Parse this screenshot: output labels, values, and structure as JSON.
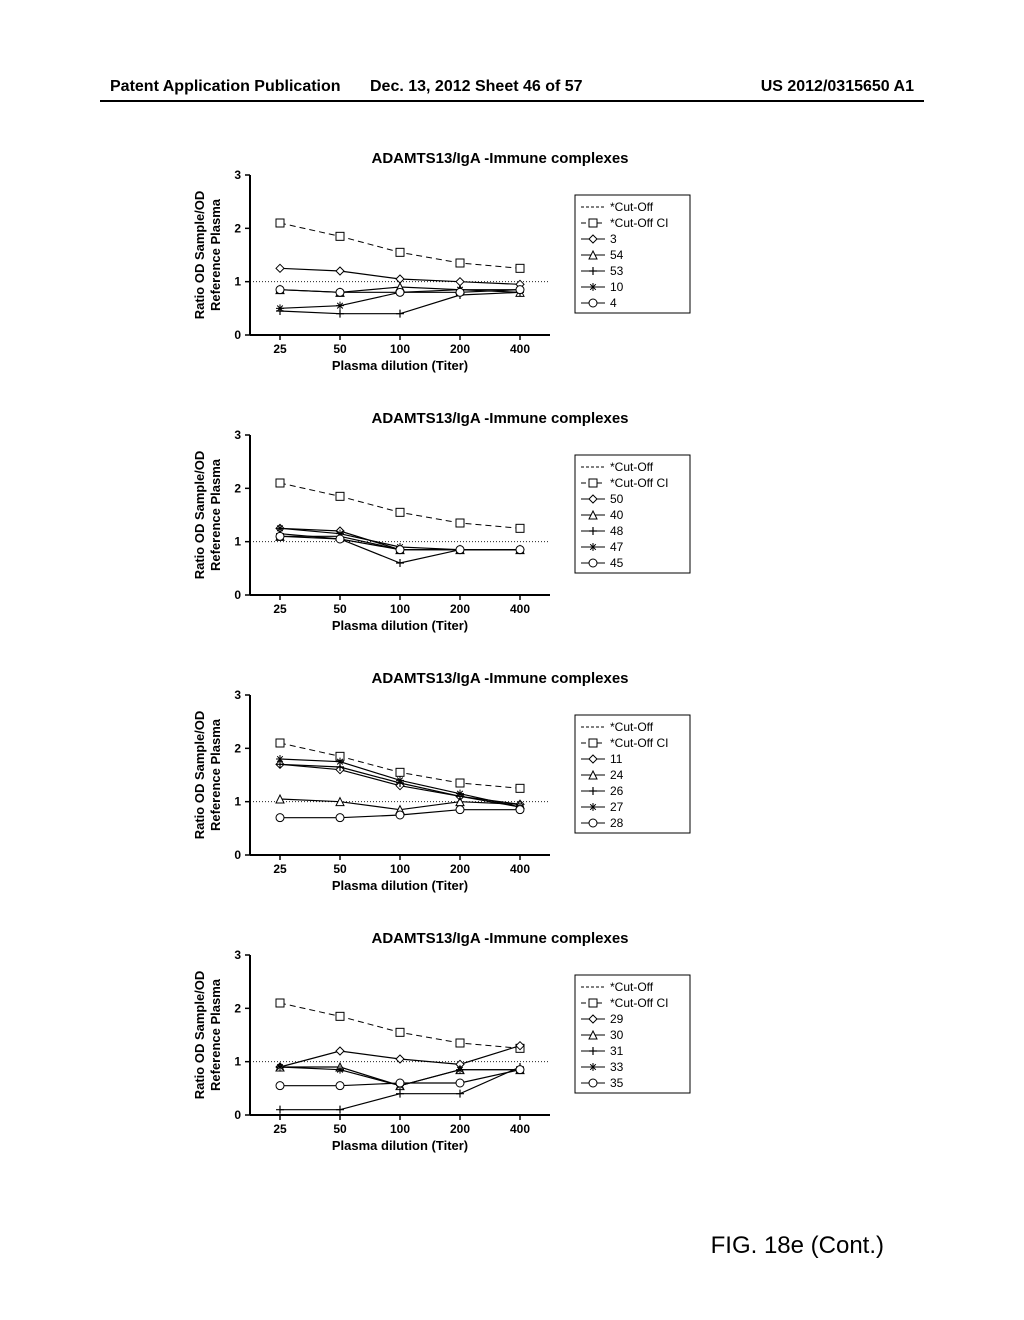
{
  "header": {
    "left": "Patent Application Publication",
    "mid": "Dec. 13, 2012  Sheet 46 of 57",
    "right": "US 2012/0315650 A1"
  },
  "caption": "FIG. 18e (Cont.)",
  "chartCommon": {
    "xlabel": "Plasma dilution (Titer)",
    "ylabel1": "Ratio OD Sample/OD",
    "ylabel2": "Reference Plasma",
    "title": "ADAMTS13/IgA -Immune complexes",
    "xticks": [
      "25",
      "50",
      "100",
      "200",
      "400"
    ],
    "yticks": [
      "0",
      "1",
      "2",
      "3"
    ],
    "cutoffValue": 1.0,
    "cutoffCI": [
      2.1,
      1.85,
      1.55,
      1.35,
      1.25
    ],
    "legendCutoff": "*Cut-Off",
    "legendCutoffCI": "*Cut-Off CI",
    "axisWidthPx": 300,
    "axisHeightPx": 160,
    "titleFontsize": 15,
    "labelFontsize": 13,
    "tickFontsize": 12,
    "legendFontsize": 12,
    "background": "#ffffff",
    "axisColor": "#000000",
    "lineColor": "#000000",
    "lineWidth": 1.2
  },
  "charts": [
    {
      "series": [
        {
          "label": "3",
          "marker": "diamond-open",
          "values": [
            1.25,
            1.2,
            1.05,
            1.0,
            0.95
          ]
        },
        {
          "label": "54",
          "marker": "triangle-open",
          "values": [
            0.85,
            0.8,
            0.9,
            0.85,
            0.8
          ]
        },
        {
          "label": "53",
          "marker": "plus",
          "values": [
            0.45,
            0.4,
            0.4,
            0.75,
            0.8
          ]
        },
        {
          "label": "10",
          "marker": "asterisk",
          "values": [
            0.5,
            0.55,
            0.8,
            0.85,
            0.85
          ]
        },
        {
          "label": "4",
          "marker": "circle-open",
          "values": [
            0.85,
            0.8,
            0.8,
            0.8,
            0.85
          ]
        }
      ]
    },
    {
      "series": [
        {
          "label": "50",
          "marker": "diamond-open",
          "values": [
            1.25,
            1.2,
            0.85,
            0.85,
            0.85
          ]
        },
        {
          "label": "40",
          "marker": "triangle-open",
          "values": [
            1.1,
            1.1,
            0.85,
            0.85,
            0.85
          ]
        },
        {
          "label": "48",
          "marker": "plus",
          "values": [
            1.15,
            1.05,
            0.6,
            0.85,
            0.85
          ]
        },
        {
          "label": "47",
          "marker": "asterisk",
          "values": [
            1.25,
            1.15,
            0.9,
            0.85,
            0.85
          ]
        },
        {
          "label": "45",
          "marker": "circle-open",
          "values": [
            1.1,
            1.05,
            0.85,
            0.85,
            0.85
          ]
        }
      ]
    },
    {
      "series": [
        {
          "label": "11",
          "marker": "diamond-open",
          "values": [
            1.7,
            1.6,
            1.3,
            1.1,
            0.95
          ]
        },
        {
          "label": "24",
          "marker": "triangle-open",
          "values": [
            1.05,
            1.0,
            0.85,
            1.0,
            0.95
          ]
        },
        {
          "label": "26",
          "marker": "plus",
          "values": [
            1.7,
            1.65,
            1.35,
            1.1,
            0.9
          ]
        },
        {
          "label": "27",
          "marker": "asterisk",
          "values": [
            1.8,
            1.75,
            1.4,
            1.15,
            0.9
          ]
        },
        {
          "label": "28",
          "marker": "circle-open",
          "values": [
            0.7,
            0.7,
            0.75,
            0.85,
            0.85
          ]
        }
      ]
    },
    {
      "series": [
        {
          "label": "29",
          "marker": "diamond-open",
          "values": [
            0.9,
            1.2,
            1.05,
            0.95,
            1.3
          ]
        },
        {
          "label": "30",
          "marker": "triangle-open",
          "values": [
            0.9,
            0.9,
            0.55,
            0.85,
            0.85
          ]
        },
        {
          "label": "31",
          "marker": "plus",
          "values": [
            0.1,
            0.1,
            0.4,
            0.4,
            0.9
          ]
        },
        {
          "label": "33",
          "marker": "asterisk",
          "values": [
            0.9,
            0.85,
            0.55,
            0.85,
            0.85
          ]
        },
        {
          "label": "35",
          "marker": "circle-open",
          "values": [
            0.55,
            0.55,
            0.6,
            0.6,
            0.85
          ]
        }
      ]
    }
  ]
}
